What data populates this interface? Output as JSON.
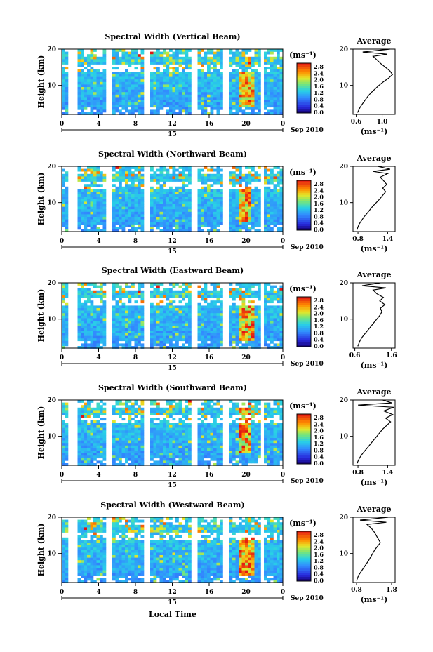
{
  "shared": {
    "ylabel": "Height (km)",
    "y_ticks": [
      "20",
      "10"
    ],
    "x_ticks": [
      "0",
      "4",
      "8",
      "12",
      "16",
      "20",
      "0"
    ],
    "date_day": "15",
    "date_label": "Sep 2010",
    "xlabel": "Local Time",
    "colorbar_unit": "(ms⁻¹)",
    "colorbar_ticks": [
      "2.8",
      "2.4",
      "2.0",
      "1.6",
      "1.2",
      "0.8",
      "0.4",
      "0.0"
    ],
    "avg_title": "Average",
    "avg_unit": "(ms⁻¹)"
  },
  "chart_data": [
    {
      "type": "heatmap",
      "title": "Spectral Width (Vertical Beam)",
      "xlabel": "Local Time",
      "ylabel": "Height (km)",
      "x_range_hours": [
        0,
        24
      ],
      "y_range_km": [
        2,
        20
      ],
      "z_range": [
        0.0,
        3.0
      ],
      "z_unit": "ms⁻¹",
      "data_gaps_hours": [
        [
          0.6,
          1.6
        ],
        [
          4.8,
          5.2
        ],
        [
          8.9,
          9.6
        ],
        [
          14.0,
          14.7
        ],
        [
          17.4,
          18.0
        ],
        [
          21.5,
          21.9
        ]
      ],
      "high_region": {
        "hours": [
          19.2,
          20.6
        ],
        "km": [
          4,
          14
        ]
      },
      "average_profile": {
        "title": "Average",
        "x_ticks": [
          "0.6",
          "1.0"
        ],
        "xlim": [
          0.55,
          1.2
        ],
        "y_ticks": [
          "20",
          "10"
        ],
        "height_km": [
          2.5,
          4,
          5,
          6,
          7,
          8,
          9,
          10,
          11,
          12,
          13,
          14,
          15,
          16,
          17,
          18,
          18.6,
          19.2,
          20
        ],
        "width_ms": [
          0.62,
          0.66,
          0.7,
          0.74,
          0.78,
          0.83,
          0.89,
          0.95,
          1.02,
          1.1,
          1.16,
          1.12,
          1.05,
          0.98,
          0.92,
          0.86,
          1.08,
          0.7,
          1.12
        ]
      }
    },
    {
      "type": "heatmap",
      "title": "Spectral Width (Northward Beam)",
      "xlabel": "Local Time",
      "ylabel": "Height (km)",
      "x_range_hours": [
        0,
        24
      ],
      "y_range_km": [
        2,
        20
      ],
      "z_range": [
        0.0,
        3.0
      ],
      "z_unit": "ms⁻¹",
      "data_gaps_hours": [
        [
          0.6,
          1.6
        ],
        [
          4.8,
          5.2
        ],
        [
          8.9,
          9.6
        ],
        [
          14.0,
          14.7
        ],
        [
          17.4,
          18.0
        ],
        [
          21.5,
          21.9
        ]
      ],
      "high_region": {
        "hours": [
          19.0,
          20.5
        ],
        "km": [
          5,
          15
        ]
      },
      "average_profile": {
        "title": "Average",
        "x_ticks": [
          "0.8",
          "1.4"
        ],
        "xlim": [
          0.7,
          1.55
        ],
        "y_ticks": [
          "20",
          "10"
        ],
        "height_km": [
          2.5,
          4,
          5,
          6,
          7,
          8,
          9,
          10,
          11,
          12,
          13,
          14,
          15,
          16,
          17,
          18,
          18.6,
          19.2,
          20
        ],
        "width_ms": [
          0.78,
          0.82,
          0.87,
          0.92,
          0.98,
          1.04,
          1.1,
          1.17,
          1.24,
          1.3,
          1.36,
          1.3,
          1.38,
          1.32,
          1.25,
          1.4,
          1.1,
          1.45,
          1.2
        ]
      }
    },
    {
      "type": "heatmap",
      "title": "Spectral Width (Eastward Beam)",
      "xlabel": "Local Time",
      "ylabel": "Height (km)",
      "x_range_hours": [
        0,
        24
      ],
      "y_range_km": [
        2,
        20
      ],
      "z_range": [
        0.0,
        3.0
      ],
      "z_unit": "ms⁻¹",
      "data_gaps_hours": [
        [
          0.6,
          1.6
        ],
        [
          4.8,
          5.2
        ],
        [
          8.9,
          9.6
        ],
        [
          14.0,
          14.7
        ],
        [
          17.4,
          18.0
        ],
        [
          21.5,
          21.9
        ]
      ],
      "high_region": {
        "hours": [
          19.2,
          20.8
        ],
        "km": [
          4,
          16
        ]
      },
      "average_profile": {
        "title": "Average",
        "x_ticks": [
          "0.6",
          "1.6"
        ],
        "xlim": [
          0.55,
          1.7
        ],
        "y_ticks": [
          "20",
          "10"
        ],
        "height_km": [
          2.5,
          4,
          5,
          6,
          7,
          8,
          9,
          10,
          11,
          12,
          13,
          14,
          15,
          16,
          17,
          18,
          18.6,
          19.2,
          20
        ],
        "width_ms": [
          0.68,
          0.74,
          0.8,
          0.88,
          0.96,
          1.04,
          1.12,
          1.2,
          1.28,
          1.34,
          1.3,
          1.42,
          1.28,
          1.38,
          1.2,
          1.1,
          1.45,
          0.8,
          1.3
        ]
      }
    },
    {
      "type": "heatmap",
      "title": "Spectral Width (Southward Beam)",
      "xlabel": "Local Time",
      "ylabel": "Height (km)",
      "x_range_hours": [
        0,
        24
      ],
      "y_range_km": [
        2,
        20
      ],
      "z_range": [
        0.0,
        3.0
      ],
      "z_unit": "ms⁻¹",
      "data_gaps_hours": [
        [
          0.6,
          1.6
        ],
        [
          4.8,
          5.2
        ],
        [
          8.9,
          9.6
        ],
        [
          14.0,
          14.7
        ],
        [
          17.4,
          18.0
        ],
        [
          21.5,
          21.9
        ]
      ],
      "high_region": {
        "hours": [
          19.0,
          20.5
        ],
        "km": [
          6,
          18
        ]
      },
      "average_profile": {
        "title": "Average",
        "x_ticks": [
          "0.8",
          "1.4"
        ],
        "xlim": [
          0.7,
          1.55
        ],
        "y_ticks": [
          "20",
          "10"
        ],
        "height_km": [
          2.5,
          4,
          5,
          6,
          7,
          8,
          9,
          10,
          11,
          12,
          13,
          14,
          15,
          16,
          17,
          18,
          18.6,
          19.2,
          20
        ],
        "width_ms": [
          0.78,
          0.83,
          0.88,
          0.94,
          1.0,
          1.06,
          1.12,
          1.18,
          1.24,
          1.3,
          1.38,
          1.46,
          1.36,
          1.5,
          1.32,
          1.52,
          0.8,
          1.48,
          1.3
        ]
      }
    },
    {
      "type": "heatmap",
      "title": "Spectral Width (Westward Beam)",
      "xlabel": "Local Time",
      "ylabel": "Height (km)",
      "x_range_hours": [
        0,
        24
      ],
      "y_range_km": [
        2,
        20
      ],
      "z_range": [
        0.0,
        3.0
      ],
      "z_unit": "ms⁻¹",
      "data_gaps_hours": [
        [
          0.6,
          1.6
        ],
        [
          4.8,
          5.2
        ],
        [
          8.9,
          9.6
        ],
        [
          14.0,
          14.7
        ],
        [
          17.4,
          18.0
        ],
        [
          21.5,
          21.9
        ]
      ],
      "high_region": {
        "hours": [
          19.2,
          20.8
        ],
        "km": [
          4,
          15
        ]
      },
      "average_profile": {
        "title": "Average",
        "x_ticks": [
          "0.8",
          "1.8"
        ],
        "xlim": [
          0.7,
          1.9
        ],
        "y_ticks": [
          "20",
          "10"
        ],
        "height_km": [
          2.5,
          4,
          5,
          6,
          7,
          8,
          9,
          10,
          11,
          12,
          13,
          14,
          15,
          16,
          17,
          18,
          18.6,
          19.2,
          20
        ],
        "width_ms": [
          0.8,
          0.86,
          0.93,
          1.0,
          1.07,
          1.14,
          1.2,
          1.26,
          1.32,
          1.4,
          1.48,
          1.42,
          1.36,
          1.3,
          1.22,
          1.1,
          1.65,
          0.9,
          1.7
        ]
      }
    }
  ]
}
